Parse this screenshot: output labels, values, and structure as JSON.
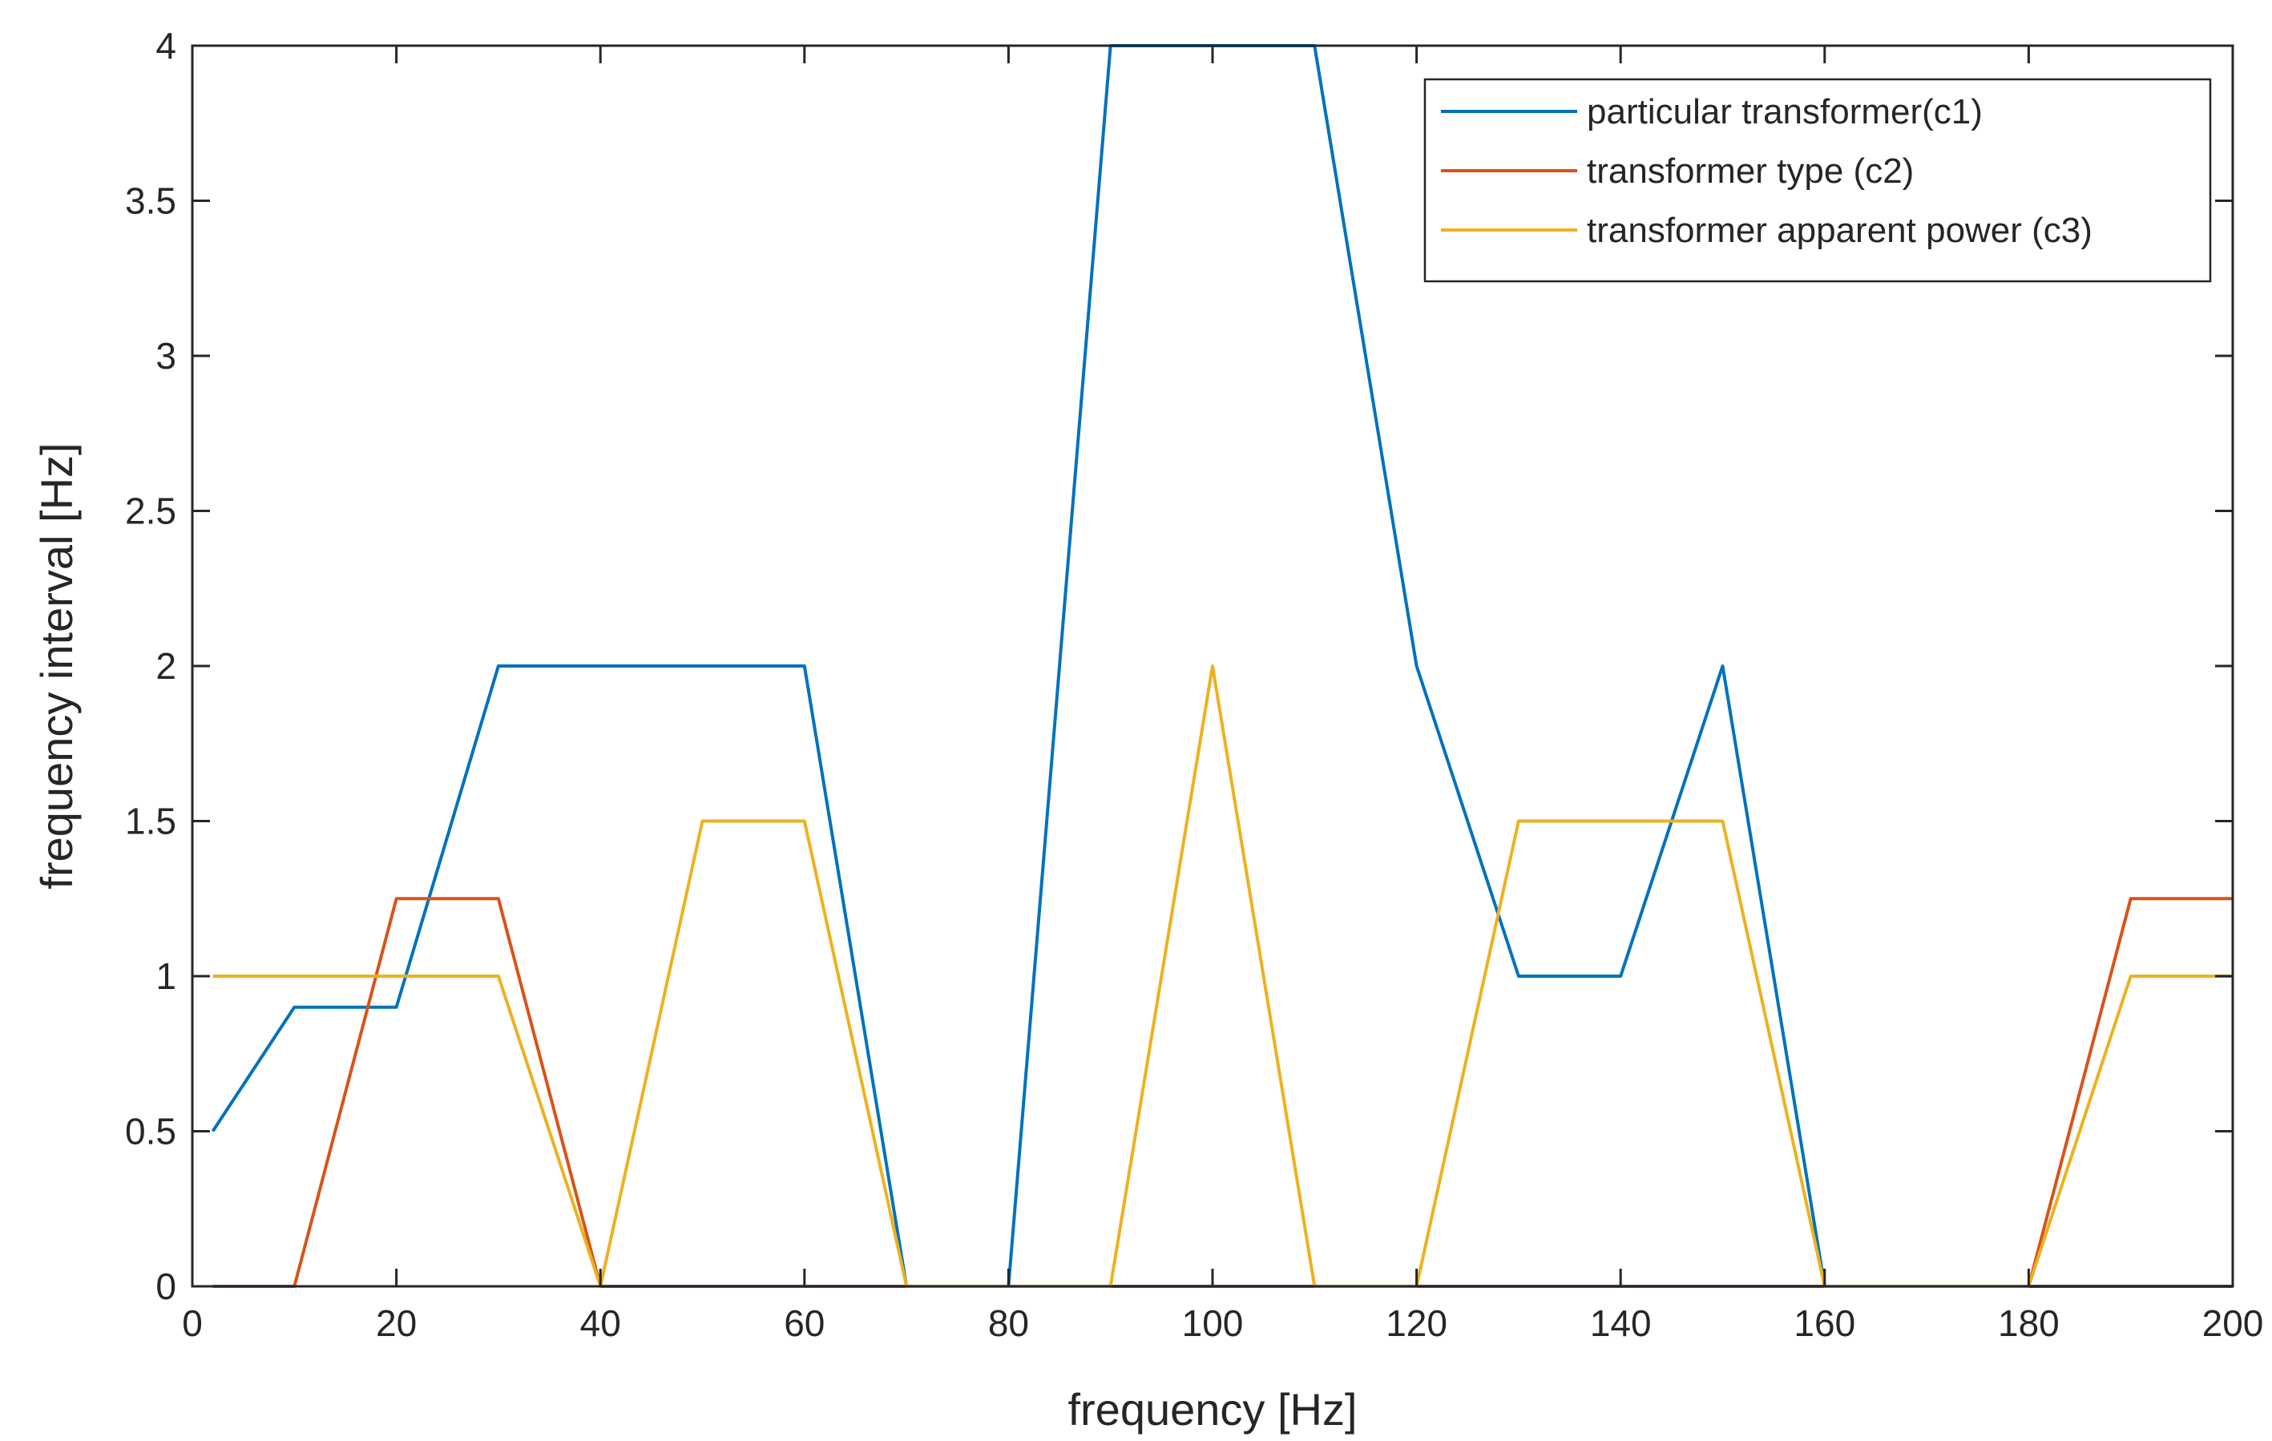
{
  "chart_data": {
    "type": "line",
    "title": "",
    "xlabel": "frequency [Hz]",
    "ylabel": "frequency interval [Hz]",
    "xlim": [
      0,
      200
    ],
    "ylim": [
      0,
      4
    ],
    "xticks": [
      0,
      20,
      40,
      60,
      80,
      100,
      120,
      140,
      160,
      180,
      200
    ],
    "yticks": [
      0,
      0.5,
      1,
      1.5,
      2,
      2.5,
      3,
      3.5,
      4
    ],
    "xtick_labels": [
      "0",
      "20",
      "40",
      "60",
      "80",
      "100",
      "120",
      "140",
      "160",
      "180",
      "200"
    ],
    "ytick_labels": [
      "0",
      "0.5",
      "1",
      "1.5",
      "2",
      "2.5",
      "3",
      "3.5",
      "4"
    ],
    "grid": false,
    "legend_position": "top-right",
    "series": [
      {
        "name": "particular transformer(c1)",
        "color": "#0072bd",
        "x": [
          2,
          10,
          20,
          30,
          40,
          50,
          60,
          70,
          80,
          90,
          100,
          110,
          120,
          130,
          140,
          150,
          160,
          170,
          180,
          190,
          200
        ],
        "y": [
          0.5,
          0.9,
          0.9,
          2,
          2,
          2,
          2,
          0,
          0,
          4,
          4,
          4,
          2,
          1,
          1,
          2,
          0,
          0,
          0,
          0,
          0
        ]
      },
      {
        "name": "transformer type (c2)",
        "color": "#d95319",
        "x": [
          2,
          10,
          20,
          30,
          40,
          50,
          60,
          70,
          80,
          90,
          100,
          110,
          120,
          130,
          140,
          150,
          160,
          170,
          180,
          190,
          200
        ],
        "y": [
          0,
          0,
          1.25,
          1.25,
          0,
          0,
          0,
          0,
          0,
          0,
          0,
          0,
          0,
          0,
          0,
          0,
          0,
          0,
          0,
          1.25,
          1.25
        ]
      },
      {
        "name": "transformer apparent power (c3)",
        "color": "#edb120",
        "x": [
          2,
          10,
          20,
          30,
          40,
          50,
          60,
          70,
          80,
          90,
          100,
          110,
          120,
          130,
          140,
          150,
          160,
          170,
          180,
          190,
          200
        ],
        "y": [
          1,
          1,
          1,
          1,
          0,
          1.5,
          1.5,
          0,
          0,
          0,
          2,
          0,
          0,
          1.5,
          1.5,
          1.5,
          0,
          0,
          0,
          1,
          1
        ]
      }
    ]
  }
}
